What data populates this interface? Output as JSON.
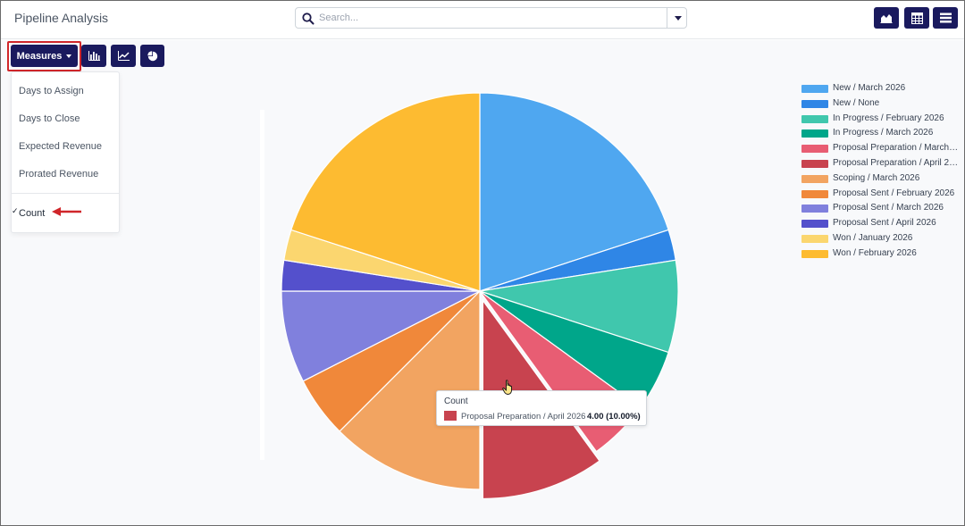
{
  "header": {
    "title": "Pipeline Analysis",
    "search_placeholder": "Search...",
    "view_buttons": [
      {
        "icon": "graph-view-icon"
      },
      {
        "icon": "pivot-view-icon"
      },
      {
        "icon": "list-view-icon"
      }
    ]
  },
  "toolbar": {
    "measures_label": "Measures",
    "chart_buttons": [
      {
        "icon": "bar-chart-icon"
      },
      {
        "icon": "line-chart-icon"
      },
      {
        "icon": "pie-chart-icon"
      }
    ]
  },
  "measures_menu": {
    "items": [
      "Days to Assign",
      "Days to Close",
      "Expected Revenue",
      "Prorated Revenue"
    ],
    "selected": "Count"
  },
  "chart_data": {
    "type": "pie",
    "measure": "Count",
    "categories": [
      "New / March 2026",
      "New / None",
      "In Progress / February 2026",
      "In Progress / March 2026",
      "Proposal Preparation / March 2026",
      "Proposal Preparation / April 2026",
      "Scoping / March 2026",
      "Proposal Sent / February 2026",
      "Proposal Sent / March 2026",
      "Proposal Sent / April 2026",
      "Won / January 2026",
      "Won / February 2026"
    ],
    "legend_labels": [
      "New / March 2026",
      "New / None",
      "In Progress / February 2026",
      "In Progress / March 2026",
      "Proposal Preparation / March 2…",
      "Proposal Preparation / April 2…",
      "Scoping / March 2026",
      "Proposal Sent / February 2026",
      "Proposal Sent / March 2026",
      "Proposal Sent / April 2026",
      "Won / January 2026",
      "Won / February 2026"
    ],
    "values": [
      8,
      1,
      3,
      2,
      2,
      4,
      5,
      2,
      3,
      1,
      1,
      8
    ],
    "colors": [
      "#4fa7f0",
      "#2f86e6",
      "#40c7ad",
      "#00a68a",
      "#e85d73",
      "#c8434f",
      "#f2a461",
      "#f0883a",
      "#8080dd",
      "#5450cc",
      "#fbd66f",
      "#fdbb31"
    ],
    "highlighted_index": 5,
    "legend_position": "right"
  },
  "tooltip": {
    "title": "Count",
    "label": "Proposal Preparation / April 2026",
    "value": "4.00 (10.00%)"
  }
}
